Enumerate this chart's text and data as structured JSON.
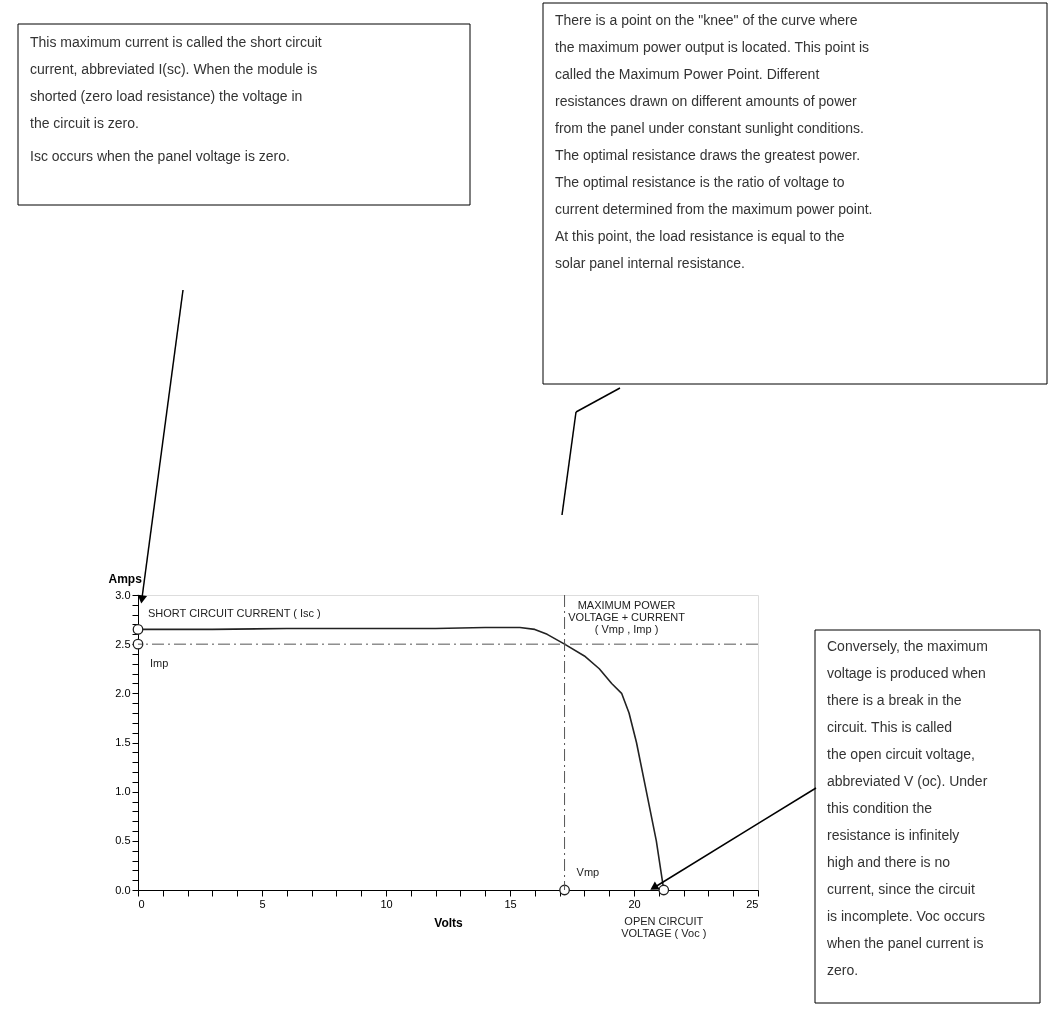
{
  "chart_data": {
    "type": "line",
    "xlabel": "Volts",
    "ylabel": "Amps",
    "xlim": [
      0,
      25
    ],
    "ylim": [
      0,
      3
    ],
    "xticks": [
      0,
      {
        "value": 1,
        "label": null
      },
      {
        "value": 2,
        "label": null
      },
      {
        "value": 3,
        "label": null
      },
      {
        "value": 4,
        "label": null
      },
      5,
      {
        "value": 6,
        "label": null
      },
      {
        "value": 7,
        "label": null
      },
      {
        "value": 8,
        "label": null
      },
      {
        "value": 9,
        "label": null
      },
      10,
      {
        "value": 11,
        "label": null
      },
      {
        "value": 12,
        "label": null
      },
      {
        "value": 13,
        "label": null
      },
      {
        "value": 14,
        "label": null
      },
      15,
      {
        "value": 16,
        "label": null
      },
      {
        "value": 17,
        "label": null
      },
      {
        "value": 18,
        "label": null
      },
      {
        "value": 19,
        "label": null
      },
      20,
      {
        "value": 21,
        "label": null
      },
      {
        "value": 22,
        "label": null
      },
      {
        "value": 23,
        "label": null
      },
      {
        "value": 24,
        "label": null
      },
      25
    ],
    "yticks": [
      {
        "value": 0,
        "label": "0.0"
      },
      {
        "value": 0.1,
        "label": null
      },
      {
        "value": 0.2,
        "label": null
      },
      {
        "value": 0.3,
        "label": null
      },
      {
        "value": 0.4,
        "label": null
      },
      {
        "value": 0.5,
        "label": "0.5"
      },
      {
        "value": 0.6,
        "label": null
      },
      {
        "value": 0.7,
        "label": null
      },
      {
        "value": 0.8,
        "label": null
      },
      {
        "value": 0.9,
        "label": null
      },
      {
        "value": 1,
        "label": "1.0"
      },
      {
        "value": 1.1,
        "label": null
      },
      {
        "value": 1.2,
        "label": null
      },
      {
        "value": 1.3,
        "label": null
      },
      {
        "value": 1.4,
        "label": null
      },
      {
        "value": 1.5,
        "label": "1.5"
      },
      {
        "value": 1.6,
        "label": null
      },
      {
        "value": 1.7,
        "label": null
      },
      {
        "value": 1.8,
        "label": null
      },
      {
        "value": 1.9,
        "label": null
      },
      {
        "value": 2,
        "label": "2.0"
      },
      {
        "value": 2.1,
        "label": null
      },
      {
        "value": 2.2,
        "label": null
      },
      {
        "value": 2.3,
        "label": null
      },
      {
        "value": 2.4,
        "label": null
      },
      {
        "value": 2.5,
        "label": "2.5"
      },
      {
        "value": 2.6,
        "label": null
      },
      {
        "value": 2.7,
        "label": null
      },
      {
        "value": 2.8,
        "label": null
      },
      {
        "value": 2.9,
        "label": null
      },
      {
        "value": 3,
        "label": "3.0"
      }
    ],
    "grid": false,
    "series": [
      {
        "color": "#222222",
        "line_style": "solid",
        "marker": "none",
        "x": [
          0,
          3,
          6,
          9,
          12,
          14,
          15.4,
          16,
          16.5,
          17.2,
          18,
          18.6,
          19.1,
          19.5,
          19.8,
          20.1,
          20.5,
          20.9,
          21.2
        ],
        "values": [
          2.65,
          2.65,
          2.66,
          2.66,
          2.66,
          2.67,
          2.67,
          2.65,
          2.6,
          2.5,
          2.38,
          2.25,
          2.1,
          2.0,
          1.8,
          1.5,
          1.0,
          0.5,
          0
        ]
      },
      {
        "type": "scatter",
        "color": "#222222",
        "marker": "circle",
        "x": [
          0,
          0,
          17.2,
          21.2
        ],
        "values": [
          2.65,
          2.5,
          0,
          0
        ]
      }
    ],
    "ref_lines": [
      {
        "axis": "y",
        "value": 2.5,
        "line_style": "dashed",
        "color": "#555555"
      },
      {
        "axis": "x",
        "value": 17.2,
        "line_style": "dashed",
        "color": "#555555"
      }
    ],
    "annotations": [
      "This maximum current is called the short circuit current, abbreviated I(sc). When the module is shorted (zero load resistance) the voltage in the circuit is zero.",
      "Isc occurs when the panel voltage is zero.",
      "There is a point on the \"knee\" of the curve where the maximum power output is located. This point is called the Maximum Power Point. Different resistances drawn on different amounts of power from the panel under constant sunlight conditions. The optimal resistance draws the greatest power. The optimal resistance is the ratio of voltage to current determined from the maximum power point. At this point, the load resistance is equal to the solar panel internal resistance.",
      "Conversely, the maximum voltage is produced when there is a break in the circuit. This is called the open circuit voltage, abbreviated V (oc). Under this condition the resistance is infinitely high and there is no current, since the circuit is incomplete. Voc occurs when the panel current is zero.",
      {
        "text": "SHORT CIRCUIT CURRENT ( Isc )",
        "x": 0,
        "y": 2.65
      },
      {
        "text": "Imp",
        "x": 0,
        "y": 2.5
      },
      {
        "text": "MAXIMUM POWER VOLTAGE + CURRENT ( Vmp , Imp )",
        "x": 17.2,
        "y": 2.5
      },
      {
        "text": "Vmp",
        "x": 17.2,
        "y": 0
      },
      {
        "text": "OPEN CIRCUIT VOLTAGE ( Voc )",
        "x": 21.2,
        "y": 0
      }
    ]
  }
}
